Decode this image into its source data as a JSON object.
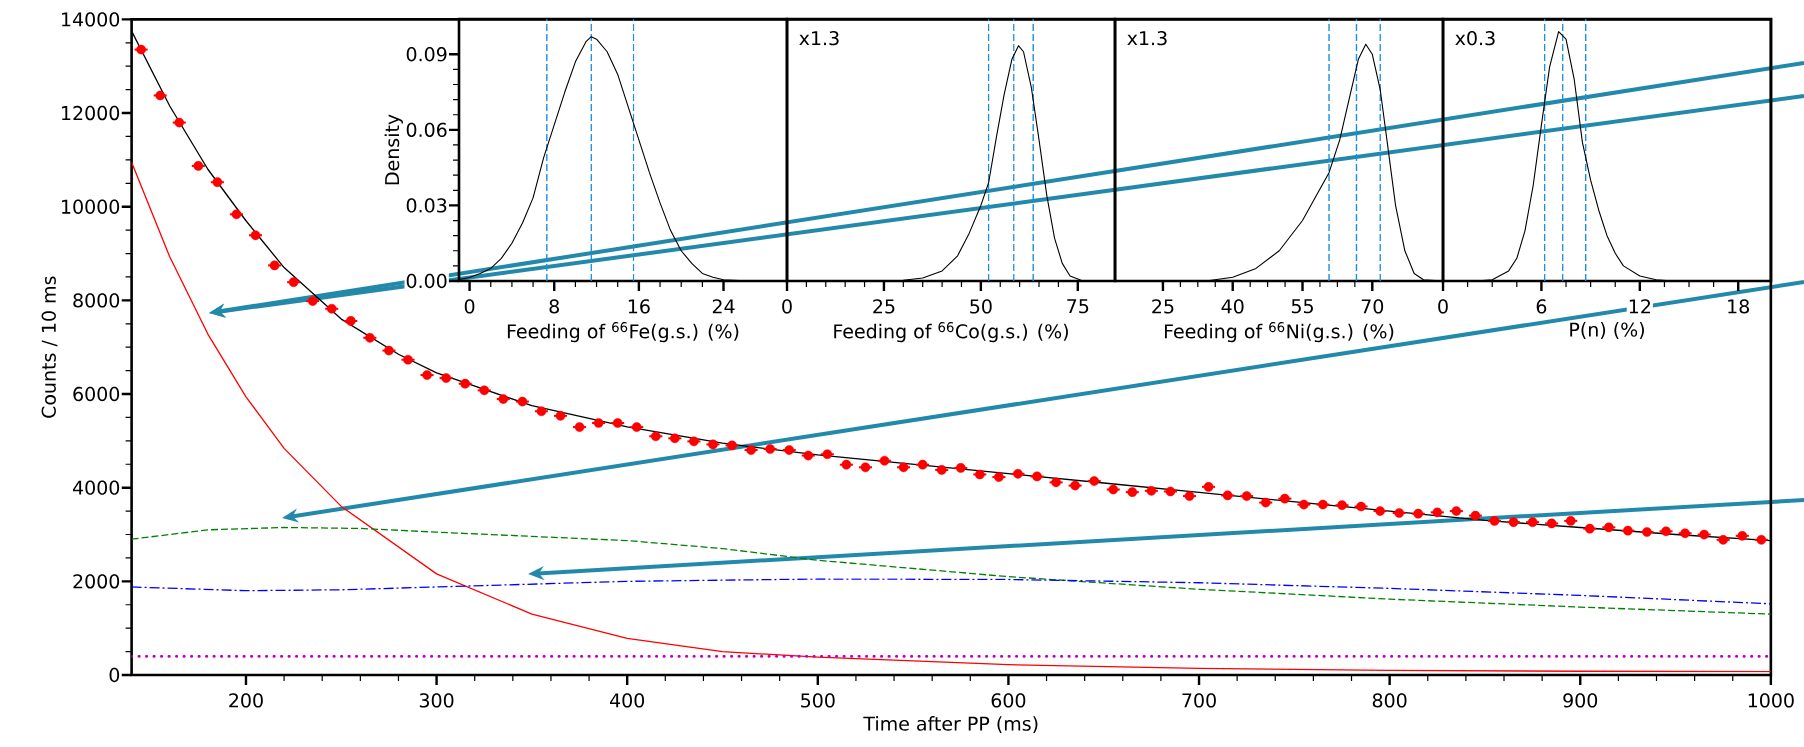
{
  "chart_data": [
    {
      "type": "line",
      "xlabel": "Time after PP (ms)",
      "ylabel": "Counts / 10 ms",
      "xlim": [
        140,
        1000
      ],
      "ylim": [
        0,
        14000
      ],
      "xticks": [
        200,
        300,
        400,
        500,
        600,
        700,
        800,
        900,
        1000
      ],
      "yticks": [
        0,
        2000,
        4000,
        6000,
        8000,
        10000,
        12000,
        14000
      ],
      "series": [
        {
          "type": "line",
          "color": "#000000",
          "line_style": "solid",
          "x": [
            140,
            160,
            180,
            200,
            220,
            250,
            280,
            300,
            350,
            400,
            450,
            500,
            550,
            600,
            650,
            700,
            750,
            800,
            850,
            900,
            950,
            1000
          ],
          "values": [
            13750,
            12150,
            10800,
            9700,
            8700,
            7600,
            6850,
            6450,
            5750,
            5300,
            4950,
            4700,
            4500,
            4300,
            4100,
            3900,
            3700,
            3500,
            3300,
            3150,
            3000,
            2870
          ]
        },
        {
          "type": "line",
          "color": "#ff0000",
          "line_style": "solid",
          "x": [
            140,
            160,
            180,
            200,
            220,
            250,
            300,
            350,
            400,
            450,
            500,
            600,
            700,
            800,
            900,
            1000
          ],
          "values": [
            10950,
            8930,
            7280,
            5940,
            4840,
            3600,
            2160,
            1300,
            780,
            500,
            380,
            220,
            140,
            100,
            80,
            70
          ]
        },
        {
          "type": "line",
          "color": "#008000",
          "line_style": "dashed",
          "x": [
            140,
            180,
            220,
            260,
            300,
            400,
            450,
            500,
            600,
            700,
            800,
            900,
            1000
          ],
          "values": [
            2900,
            3100,
            3150,
            3130,
            3050,
            2870,
            2700,
            2450,
            2100,
            1830,
            1620,
            1450,
            1300
          ]
        },
        {
          "type": "line",
          "color": "#0000ff",
          "line_style": "dashdot",
          "x": [
            140,
            200,
            250,
            300,
            400,
            500,
            600,
            700,
            800,
            900,
            1000
          ],
          "values": [
            1880,
            1800,
            1820,
            1880,
            2000,
            2050,
            2040,
            1970,
            1850,
            1700,
            1520
          ]
        },
        {
          "type": "line",
          "color": "#bf00bf",
          "line_style": "dotted",
          "x": [
            140,
            1000
          ],
          "values": [
            400,
            400
          ]
        },
        {
          "type": "scatter",
          "color": "#ff0000",
          "x": [
            145,
            155,
            165,
            175,
            185,
            195,
            205,
            215,
            225,
            235,
            245,
            255,
            265,
            275,
            285,
            295,
            305,
            315,
            325,
            335,
            345,
            355,
            365,
            375,
            385,
            395,
            405,
            415,
            425,
            435,
            445,
            455,
            465,
            475,
            485,
            495,
            505,
            515,
            525,
            535,
            545,
            555,
            565,
            575,
            585,
            595,
            605,
            615,
            625,
            635,
            645,
            655,
            665,
            675,
            685,
            695,
            705,
            715,
            725,
            735,
            745,
            755,
            765,
            775,
            785,
            795,
            805,
            815,
            825,
            835,
            845,
            855,
            865,
            875,
            885,
            895,
            905,
            915,
            925,
            935,
            945,
            955,
            965,
            975,
            985,
            995
          ],
          "values": [
            13355,
            12375,
            11797,
            10871,
            10523,
            9837,
            9390,
            8747,
            8388,
            7985,
            7821,
            7560,
            7200,
            6928,
            6732,
            6405,
            6340,
            6220,
            6078,
            5893,
            5839,
            5632,
            5534,
            5294,
            5381,
            5381,
            5294,
            5098,
            5054,
            4989,
            4924,
            4902,
            4804,
            4826,
            4804,
            4686,
            4714,
            4491,
            4435,
            4575,
            4435,
            4491,
            4379,
            4421,
            4282,
            4226,
            4296,
            4240,
            4114,
            4045,
            4142,
            3961,
            3905,
            3933,
            3919,
            3821,
            4017,
            3835,
            3821,
            3682,
            3766,
            3640,
            3640,
            3626,
            3598,
            3501,
            3459,
            3445,
            3473,
            3501,
            3403,
            3291,
            3264,
            3264,
            3236,
            3291,
            3124,
            3152,
            3082,
            3054,
            3068,
            3026,
            2999,
            2887,
            2971,
            2887
          ],
          "xerrors": [
            5,
            5,
            5,
            5,
            5,
            5,
            5,
            5,
            5,
            5,
            5,
            5,
            5,
            5,
            5,
            5,
            5,
            5,
            5,
            5,
            5,
            5,
            5,
            5,
            5,
            5,
            5,
            5,
            5,
            5,
            5,
            5,
            5,
            5,
            5,
            5,
            5,
            5,
            5,
            5,
            5,
            5,
            5,
            5,
            5,
            5,
            5,
            5,
            5,
            5,
            5,
            5,
            5,
            5,
            5,
            5,
            5,
            5,
            5,
            5,
            5,
            5,
            5,
            5,
            5,
            5,
            5,
            5,
            5,
            5,
            5,
            5,
            5,
            5,
            5,
            5,
            5,
            5,
            5,
            5,
            5,
            5,
            5,
            5,
            5,
            5
          ]
        }
      ]
    },
    {
      "type": "line",
      "xlabel": "Feeding of $^{66}$Fe(g.s.) (%)",
      "ylabel": "Density",
      "xlim": [
        -1,
        30
      ],
      "ylim": [
        0,
        0.104
      ],
      "xticks": [
        0,
        8,
        16,
        24
      ],
      "yticks": [
        {
          "value": 0,
          "label": "0.00"
        },
        {
          "value": 0.03,
          "label": "0.03"
        },
        {
          "value": 0.06,
          "label": "0.06"
        },
        {
          "value": 0.09,
          "label": "0.09"
        }
      ],
      "series": [
        {
          "color": "#000000",
          "x": [
            -1,
            0,
            1,
            2,
            3,
            4,
            5,
            6,
            7,
            8,
            9,
            10,
            11,
            11.5,
            12,
            13,
            14,
            15,
            16,
            17,
            18,
            19,
            20,
            21,
            22,
            23,
            24,
            26,
            30
          ],
          "values": [
            0.0006,
            0.0014,
            0.003,
            0.005,
            0.009,
            0.015,
            0.023,
            0.033,
            0.049,
            0.062,
            0.075,
            0.087,
            0.095,
            0.097,
            0.096,
            0.091,
            0.082,
            0.069,
            0.056,
            0.043,
            0.031,
            0.02,
            0.012,
            0.007,
            0.003,
            0.0015,
            0.0005,
            0.0001,
            0
          ]
        }
      ],
      "ref_lines": [
        {
          "axis": "x",
          "value": 7.3,
          "color": "#1a8fe3",
          "line_style": "dashed"
        },
        {
          "axis": "x",
          "value": 11.5,
          "color": "#1a8fe3",
          "line_style": "dashed"
        },
        {
          "axis": "x",
          "value": 15.5,
          "color": "#1a8fe3",
          "line_style": "dashed"
        }
      ]
    },
    {
      "type": "line",
      "xlabel": "Feeding of $^{66}$Co(g.s.) (%)",
      "xlim": [
        0,
        84.6
      ],
      "ylim": [
        0,
        0.104
      ],
      "xticks": [
        0,
        25,
        50,
        75
      ],
      "tick_labels": "x",
      "annotations": [
        "x1.3"
      ],
      "series": [
        {
          "color": "#000000",
          "x": [
            0,
            30,
            35,
            40,
            44,
            47,
            50,
            52,
            54,
            56,
            58,
            59.7,
            61,
            63,
            65,
            67,
            69,
            71,
            73,
            76,
            84.6
          ],
          "values": [
            0,
            0.0003,
            0.0012,
            0.004,
            0.01,
            0.019,
            0.03,
            0.039,
            0.057,
            0.074,
            0.088,
            0.0934,
            0.091,
            0.077,
            0.056,
            0.034,
            0.017,
            0.007,
            0.002,
            0.0002,
            0
          ]
        }
      ],
      "ref_lines": [
        {
          "axis": "x",
          "value": 52,
          "color": "#1a8fe3",
          "line_style": "dashed"
        },
        {
          "axis": "x",
          "value": 58.5,
          "color": "#1a8fe3",
          "line_style": "dashed"
        },
        {
          "axis": "x",
          "value": 63.5,
          "color": "#1a8fe3",
          "line_style": "dashed"
        }
      ]
    },
    {
      "type": "line",
      "xlabel": "Feeding of $^{66}$Ni(g.s.) (%)",
      "xlim": [
        14.7,
        85.2
      ],
      "ylim": [
        0,
        0.104
      ],
      "xticks": [
        25,
        40,
        55,
        70
      ],
      "tick_labels": "x",
      "annotations": [
        "x1.3"
      ],
      "series": [
        {
          "color": "#000000",
          "x": [
            14.7,
            35,
            40,
            45,
            50,
            55,
            58,
            60.7,
            63,
            65,
            67,
            68.6,
            70,
            71.7,
            73,
            75,
            77,
            79,
            81,
            85.2
          ],
          "values": [
            0,
            0.0002,
            0.0015,
            0.005,
            0.012,
            0.024,
            0.034,
            0.043,
            0.056,
            0.072,
            0.088,
            0.094,
            0.09,
            0.076,
            0.058,
            0.03,
            0.012,
            0.003,
            0.0005,
            0
          ]
        }
      ],
      "ref_lines": [
        {
          "axis": "x",
          "value": 60.7,
          "color": "#1a8fe3",
          "line_style": "dashed"
        },
        {
          "axis": "x",
          "value": 66.6,
          "color": "#1a8fe3",
          "line_style": "dashed"
        },
        {
          "axis": "x",
          "value": 71.7,
          "color": "#1a8fe3",
          "line_style": "dashed"
        }
      ]
    },
    {
      "type": "line",
      "xlabel": "P(n) (%)",
      "xlim": [
        0,
        20
      ],
      "ylim": [
        0,
        0.104
      ],
      "xticks": [
        0,
        6,
        12,
        18
      ],
      "tick_labels": "x",
      "annotations": [
        "x0.3"
      ],
      "series": [
        {
          "color": "#000000",
          "x": [
            0,
            2,
            3,
            4,
            4.5,
            5,
            5.5,
            6,
            6.5,
            7.05,
            7.5,
            8,
            8.5,
            9,
            9.5,
            10,
            10.5,
            11,
            12,
            13,
            14,
            20
          ],
          "values": [
            0,
            0,
            0.0005,
            0.004,
            0.009,
            0.02,
            0.038,
            0.062,
            0.085,
            0.099,
            0.096,
            0.08,
            0.055,
            0.04,
            0.028,
            0.018,
            0.011,
            0.006,
            0.002,
            0.0005,
            0,
            0
          ]
        }
      ],
      "ref_lines": [
        {
          "axis": "x",
          "value": 6.2,
          "color": "#1a8fe3",
          "line_style": "dashed"
        },
        {
          "axis": "x",
          "value": 7.3,
          "color": "#1a8fe3",
          "line_style": "dashed"
        },
        {
          "axis": "x",
          "value": 8.7,
          "color": "#1a8fe3",
          "line_style": "dashed"
        }
      ]
    }
  ]
}
